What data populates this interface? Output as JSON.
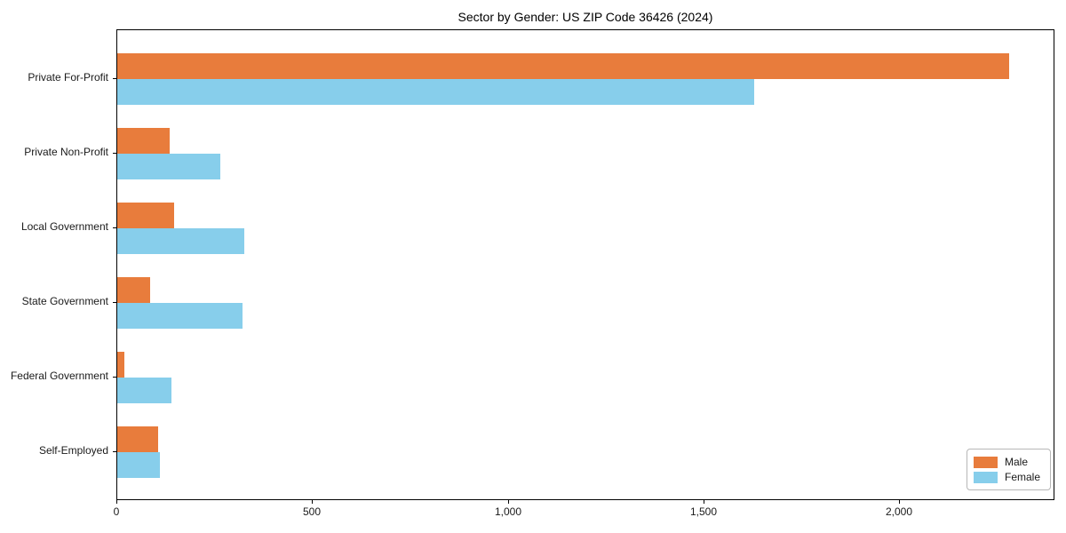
{
  "figure": {
    "title": "Sector by Gender: US ZIP Code 36426 (2024)"
  },
  "chart_data": {
    "type": "bar",
    "orientation": "horizontal",
    "title": "Sector by Gender: US ZIP Code 36426 (2024)",
    "categories": [
      "Private For-Profit",
      "Private Non-Profit",
      "Local Government",
      "State Government",
      "Federal Government",
      "Self-Employed"
    ],
    "series": [
      {
        "name": "Male",
        "color": "#e87c3c",
        "values": [
          2280,
          133,
          145,
          85,
          18,
          105
        ]
      },
      {
        "name": "Female",
        "color": "#87ceeb",
        "values": [
          1628,
          264,
          325,
          320,
          138,
          108
        ]
      }
    ],
    "xlabel": "",
    "ylabel": "",
    "xlim": [
      0,
      2397
    ],
    "xticks": {
      "values": [
        0,
        500,
        1000,
        1500,
        2000
      ],
      "labels": [
        "0",
        "500",
        "1,000",
        "1,500",
        "2,000"
      ]
    },
    "grid": false,
    "legend": {
      "position": "lower right",
      "entries": [
        "Male",
        "Female"
      ]
    }
  }
}
